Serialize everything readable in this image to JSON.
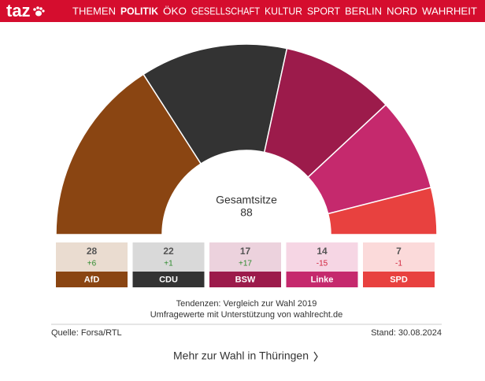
{
  "nav": {
    "logo": "taz",
    "items": [
      "THEMEN",
      "POLITIK",
      "ÖKO",
      "GESELLSCHAFT",
      "KULTUR",
      "SPORT",
      "BERLIN",
      "NORD",
      "WAHRHEIT"
    ],
    "active_index": 1
  },
  "chart_data": {
    "type": "parliament",
    "center_label": "Gesamtsitze",
    "total_seats": 88,
    "categories": [
      "AfD",
      "CDU",
      "BSW",
      "Linke",
      "SPD"
    ],
    "values": [
      28,
      22,
      17,
      14,
      7
    ],
    "changes": [
      6,
      1,
      17,
      -15,
      -1
    ],
    "change_labels": [
      "+6",
      "+1",
      "+17",
      "-15",
      "-1"
    ],
    "colors": [
      "#8a4512",
      "#333333",
      "#9c1b4b",
      "#c5296d",
      "#e8413f"
    ],
    "light_colors": [
      "#eadcd0",
      "#d9d9d9",
      "#ecd2dd",
      "#f6d6e4",
      "#fbdada"
    ],
    "notes": [
      "Tendenzen: Vergleich zur Wahl 2019",
      "Umfragewerte mit Unterstützung von wahlrecht.de"
    ],
    "source": "Quelle: Forsa/RTL",
    "date": "Stand: 30.08.2024"
  },
  "link": "Mehr zur Wahl in Thüringen"
}
